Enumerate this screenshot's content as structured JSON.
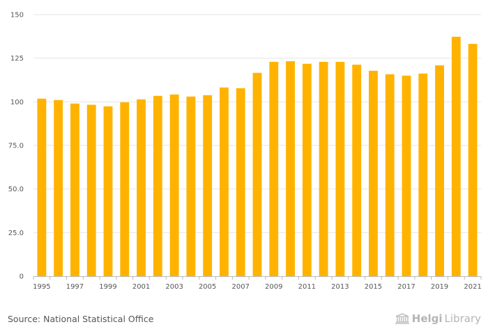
{
  "chart_data": {
    "type": "bar",
    "title": "",
    "xlabel": "",
    "ylabel": "",
    "ylim": [
      0,
      150
    ],
    "yticks": [
      0,
      25,
      50,
      75,
      100,
      125,
      150
    ],
    "ytick_labels": [
      "0",
      "25.0",
      "50.0",
      "75.0",
      "100",
      "125",
      "150"
    ],
    "categories": [
      "1995",
      "1996",
      "1997",
      "1998",
      "1999",
      "2000",
      "2001",
      "2002",
      "2003",
      "2004",
      "2005",
      "2006",
      "2007",
      "2008",
      "2009",
      "2010",
      "2011",
      "2012",
      "2013",
      "2014",
      "2015",
      "2016",
      "2017",
      "2018",
      "2019",
      "2020",
      "2021"
    ],
    "values": [
      101.8,
      101.0,
      99.0,
      98.3,
      97.4,
      99.7,
      101.4,
      103.4,
      104.2,
      103.0,
      103.8,
      108.2,
      107.8,
      116.6,
      122.9,
      123.3,
      121.8,
      122.9,
      122.9,
      121.3,
      117.8,
      115.8,
      115.0,
      116.2,
      120.9,
      137.3,
      133.2
    ],
    "xtick_labels": [
      "1995",
      "1997",
      "1999",
      "2001",
      "2003",
      "2005",
      "2007",
      "2009",
      "2011",
      "2013",
      "2015",
      "2017",
      "2019",
      "2021"
    ],
    "bar_color": "#FFB300",
    "grid": true
  },
  "footer": {
    "source": "Source: National Statistical Office",
    "logo_part1": "Helgi",
    "logo_part2": "Library"
  },
  "colors": {
    "bar": "#FFB300",
    "grid": "#e6e6e6",
    "axis": "#bbbbbb",
    "text": "#555555"
  }
}
